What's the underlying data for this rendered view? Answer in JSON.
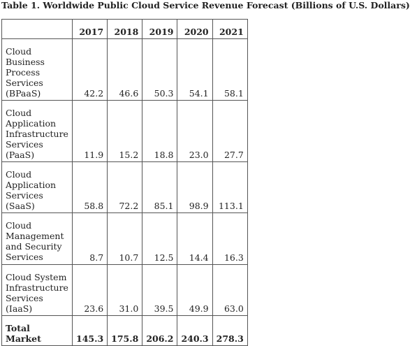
{
  "title": "Table 1. Worldwide Public Cloud Service Revenue Forecast (Billions of U.S. Dollars)",
  "table": {
    "columns": [
      "2017",
      "2018",
      "2019",
      "2020",
      "2021"
    ],
    "rows": [
      {
        "label": [
          "Cloud",
          "Business",
          "Process",
          "Services",
          "(BPaaS)"
        ],
        "values": [
          "42.2",
          "46.6",
          "50.3",
          "54.1",
          "58.1"
        ]
      },
      {
        "label": [
          "Cloud",
          "Application",
          "Infrastructure",
          "Services",
          "(PaaS)"
        ],
        "values": [
          "11.9",
          "15.2",
          "18.8",
          "23.0",
          "27.7"
        ]
      },
      {
        "label": [
          "Cloud",
          "Application",
          "Services",
          "(SaaS)"
        ],
        "values": [
          "58.8",
          "72.2",
          "85.1",
          "98.9",
          "113.1"
        ]
      },
      {
        "label": [
          "Cloud",
          "Management",
          "and Security",
          "Services"
        ],
        "values": [
          "8.7",
          "10.7",
          "12.5",
          "14.4",
          "16.3"
        ]
      },
      {
        "label": [
          "Cloud System",
          "Infrastructure",
          "Services",
          "(IaaS)"
        ],
        "values": [
          "23.6",
          "31.0",
          "39.5",
          "49.9",
          "63.0"
        ]
      }
    ],
    "total": {
      "label": [
        "Total",
        "Market"
      ],
      "values": [
        "145.3",
        "175.8",
        "206.2",
        "240.3",
        "278.3"
      ]
    }
  }
}
